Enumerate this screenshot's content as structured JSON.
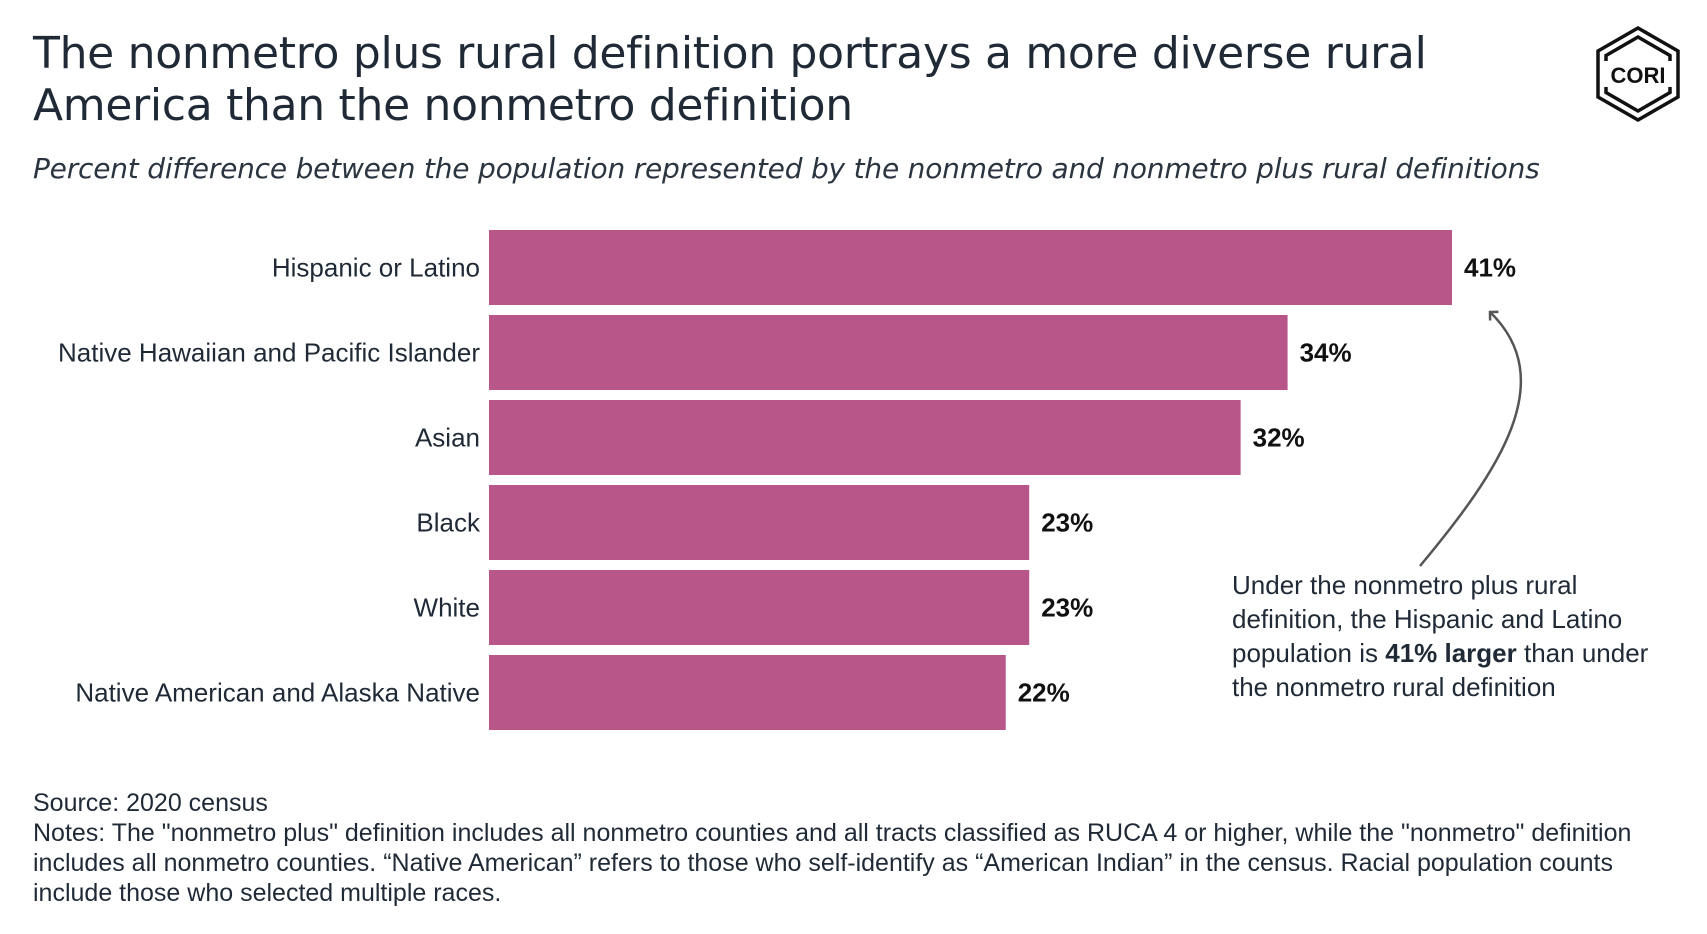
{
  "title": "The nonmetro plus rural definition portrays a more diverse rural America than the nonmetro definition",
  "subtitle": "Percent difference between the population represented by the nonmetro and nonmetro plus rural definitions",
  "logo": {
    "text": "CORI",
    "icon": "cori-hexagon-logo"
  },
  "chart_data": {
    "type": "bar",
    "orientation": "horizontal",
    "categories": [
      "Hispanic or Latino",
      "Native Hawaiian and Pacific Islander",
      "Asian",
      "Black",
      "White",
      "Native American and Alaska Native"
    ],
    "values": [
      41,
      34,
      32,
      23,
      23,
      22
    ],
    "value_labels": [
      "41%",
      "34%",
      "32%",
      "23%",
      "23%",
      "22%"
    ],
    "unit": "%",
    "xlim": [
      0,
      41
    ],
    "grid": false,
    "legend": "none",
    "bar_color": "#b8568a",
    "annotation": {
      "target_category": "Hispanic or Latino",
      "text_before": "Under the nonmetro plus rural definition, the Hispanic and Latino population is ",
      "text_bold": "41% larger",
      "text_after": " than under the nonmetro rural definition"
    }
  },
  "footer": {
    "source": "Source: 2020 census",
    "notes": "Notes: The \"nonmetro plus\" definition includes all nonmetro counties and all tracts classified as RUCA 4 or higher, while the \"nonmetro\" definition includes all nonmetro counties. “Native American” refers to those who self-identify as “American Indian” in the census. Racial population counts include those who selected multiple races."
  }
}
